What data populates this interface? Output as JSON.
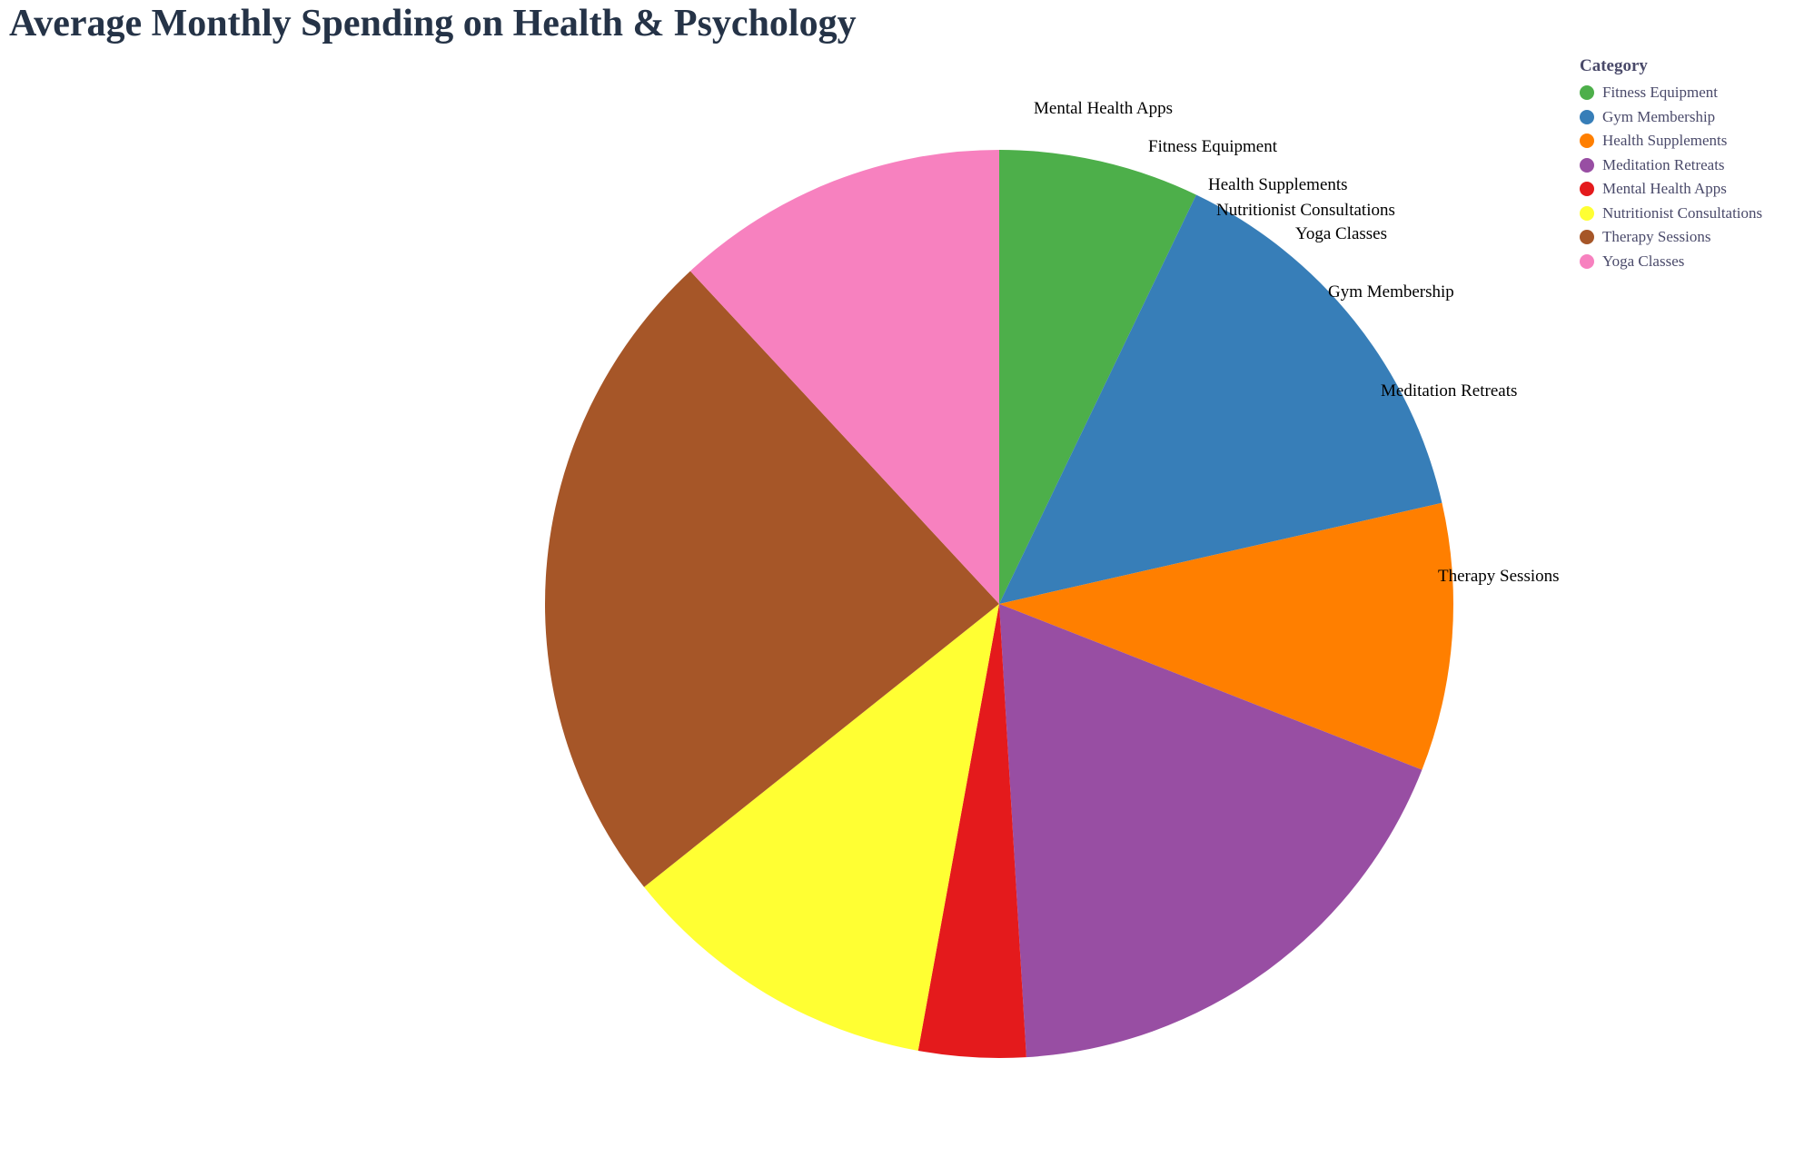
{
  "chart_data": {
    "type": "pie",
    "title": "Average Monthly Spending on Health & Psychology",
    "legend_title": "Category",
    "legend_placement": "top-right",
    "slices": [
      {
        "label": "Fitness Equipment",
        "value": 75,
        "color": "#4daf4a"
      },
      {
        "label": "Gym Membership",
        "value": 150,
        "color": "#377eb8"
      },
      {
        "label": "Health Supplements",
        "value": 100,
        "color": "#ff7f00"
      },
      {
        "label": "Meditation Retreats",
        "value": 190,
        "color": "#984ea3"
      },
      {
        "label": "Mental Health Apps",
        "value": 40,
        "color": "#e41a1c"
      },
      {
        "label": "Nutritionist Consultations",
        "value": 120,
        "color": "#ffff33"
      },
      {
        "label": "Therapy Sessions",
        "value": 250,
        "color": "#a65628"
      },
      {
        "label": "Yoga Classes",
        "value": 125,
        "color": "#f781bf"
      }
    ],
    "outside_labels": [
      "Mental Health Apps",
      "Fitness Equipment",
      "Health Supplements",
      "Nutritionist Consultations",
      "Yoga Classes",
      "Gym Membership",
      "Meditation Retreats",
      "Therapy Sessions"
    ]
  }
}
